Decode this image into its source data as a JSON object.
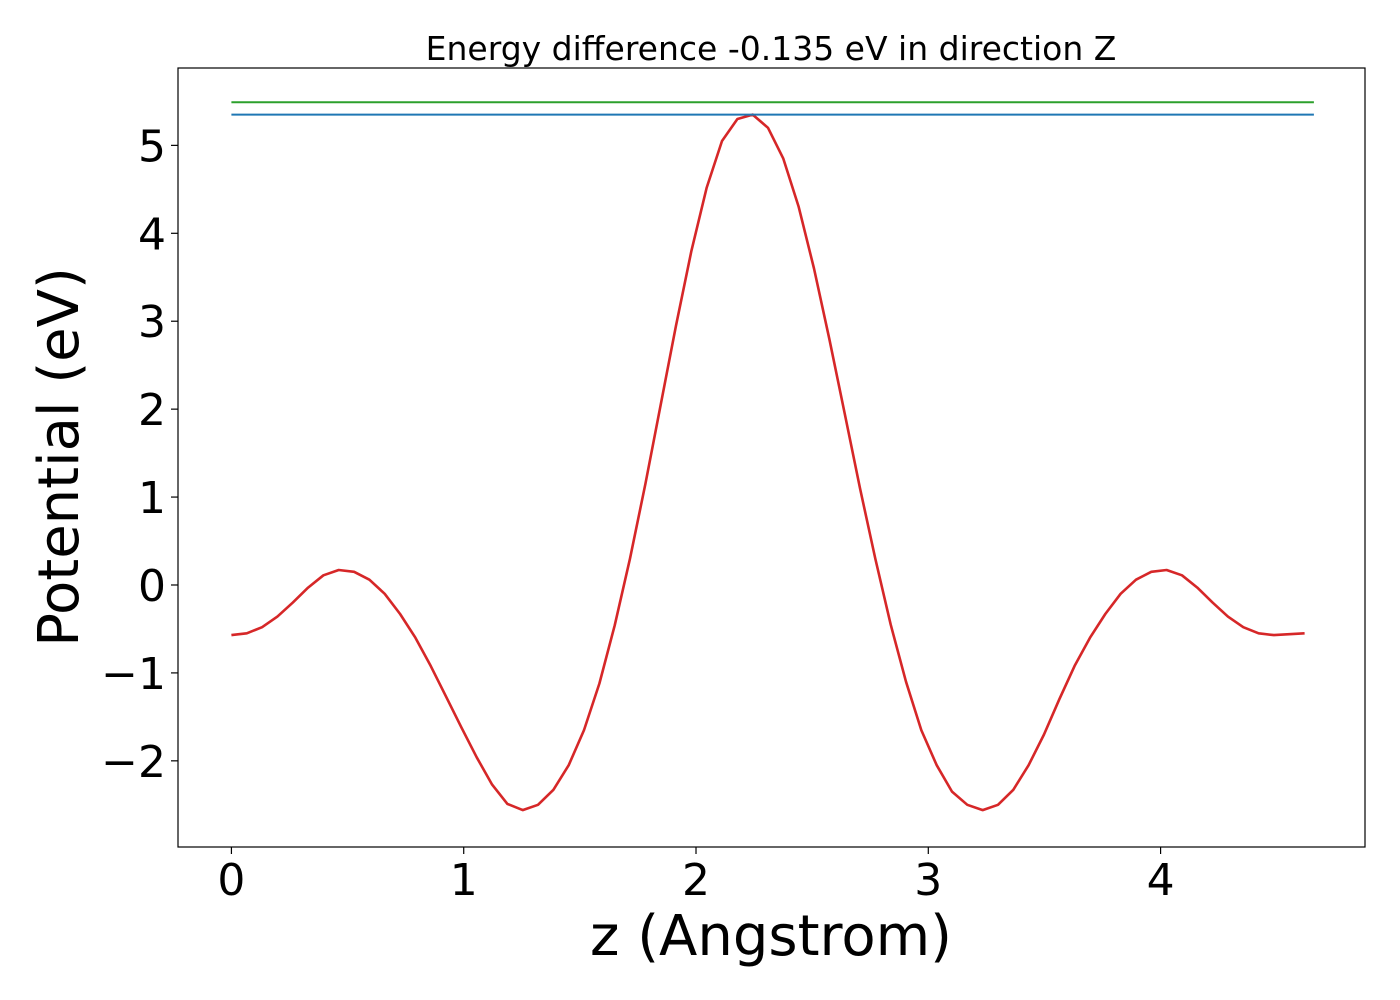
{
  "chart_data": {
    "type": "line",
    "title": "Energy difference -0.135 eV in direction Z",
    "xlabel": "z (Angstrom)",
    "ylabel": "Potential (eV)",
    "xlim": [
      -0.23,
      4.88
    ],
    "ylim": [
      -2.98,
      5.88
    ],
    "xticks": [
      0,
      1,
      2,
      3,
      4
    ],
    "yticks": [
      -2,
      -1,
      0,
      1,
      2,
      3,
      4,
      5
    ],
    "xtick_labels": [
      "0",
      "1",
      "2",
      "3",
      "4"
    ],
    "ytick_labels": [
      "−2",
      "−1",
      "0",
      "1",
      "2",
      "3",
      "4",
      "5"
    ],
    "grid": false,
    "legend": "none",
    "series": [
      {
        "color": "#d62728",
        "x": [
          0.0,
          0.066,
          0.132,
          0.198,
          0.264,
          0.33,
          0.396,
          0.462,
          0.528,
          0.594,
          0.66,
          0.726,
          0.792,
          0.858,
          0.924,
          0.99,
          1.056,
          1.122,
          1.188,
          1.254,
          1.32,
          1.386,
          1.452,
          1.518,
          1.584,
          1.65,
          1.716,
          1.782,
          1.848,
          1.914,
          1.98,
          2.046,
          2.112,
          2.178,
          2.244,
          2.31,
          2.376,
          2.442,
          2.508,
          2.574,
          2.64,
          2.706,
          2.772,
          2.838,
          2.904,
          2.97,
          3.036,
          3.102,
          3.168,
          3.234,
          3.3,
          3.366,
          3.432,
          3.498,
          3.564,
          3.63,
          3.696,
          3.762,
          3.828,
          3.894,
          3.96,
          4.026,
          4.092,
          4.158,
          4.224,
          4.29,
          4.356,
          4.422,
          4.488,
          4.554,
          4.62
        ],
        "y": [
          -0.57,
          -0.55,
          -0.48,
          -0.36,
          -0.2,
          -0.03,
          0.11,
          0.17,
          0.15,
          0.06,
          -0.1,
          -0.33,
          -0.6,
          -0.92,
          -1.27,
          -1.62,
          -1.96,
          -2.27,
          -2.49,
          -2.56,
          -2.5,
          -2.33,
          -2.05,
          -1.65,
          -1.12,
          -0.46,
          0.3,
          1.15,
          2.05,
          2.95,
          3.8,
          4.52,
          5.05,
          5.3,
          5.35,
          5.2,
          4.85,
          4.3,
          3.6,
          2.8,
          1.95,
          1.1,
          0.3,
          -0.45,
          -1.1,
          -1.65,
          -2.05,
          -2.35,
          -2.5,
          -2.56,
          -2.5,
          -2.33,
          -2.05,
          -1.7,
          -1.3,
          -0.92,
          -0.6,
          -0.33,
          -0.1,
          0.06,
          0.15,
          0.17,
          0.11,
          -0.03,
          -0.2,
          -0.36,
          -0.48,
          -0.55,
          -0.57,
          -0.56,
          -0.55
        ]
      },
      {
        "color": "#1f77b4",
        "x": [
          0.0,
          4.66
        ],
        "y": [
          5.35,
          5.35
        ]
      },
      {
        "color": "#2ca02c",
        "x": [
          0.0,
          4.66
        ],
        "y": [
          5.49,
          5.49
        ]
      }
    ]
  }
}
